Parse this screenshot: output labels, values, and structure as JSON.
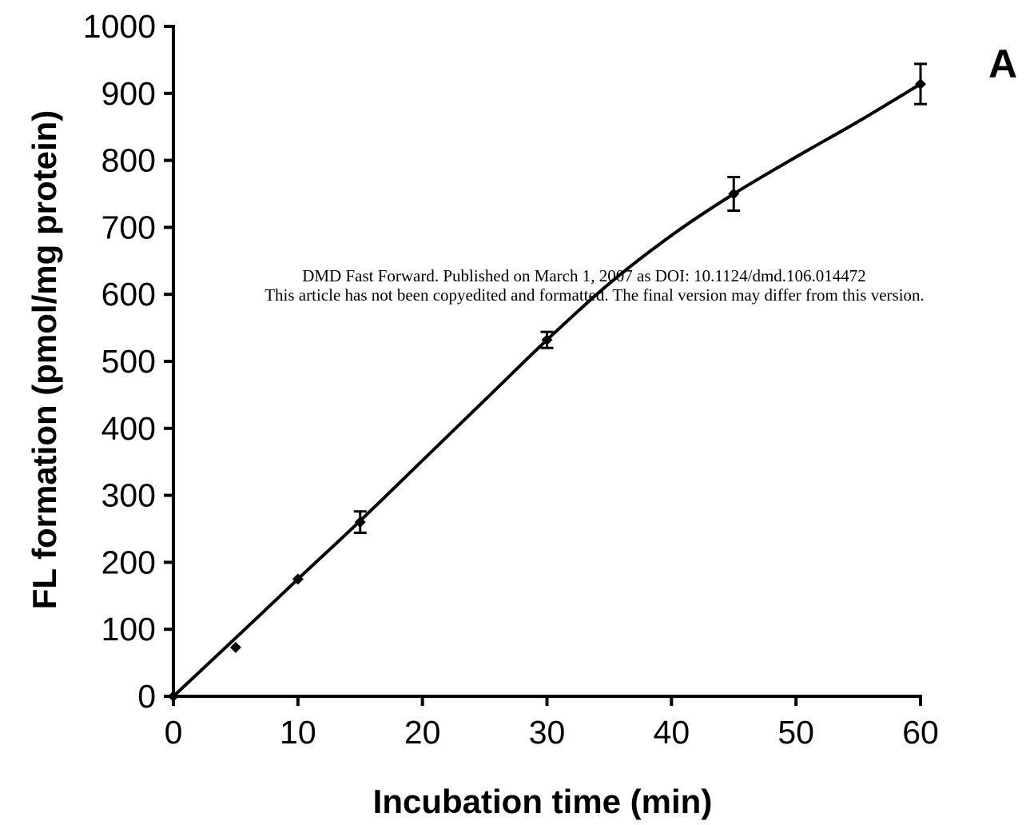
{
  "watermark": {
    "line1": "DMD Fast Forward. Published on March 1, 2007 as DOI: 10.1124/dmd.106.014472",
    "line2": "This article has not been copyedited and formatted. The final version may differ from this version."
  },
  "chart_data": {
    "type": "scatter",
    "panel_label": "A",
    "xlabel": "Incubation time (min)",
    "ylabel": "FL formation (pmol/mg protein)",
    "xlim": [
      0,
      60
    ],
    "ylim": [
      0,
      1000
    ],
    "x_ticks": [
      0,
      10,
      20,
      30,
      40,
      50,
      60
    ],
    "y_ticks": [
      0,
      100,
      200,
      300,
      400,
      500,
      600,
      700,
      800,
      900,
      1000
    ],
    "grid": false,
    "legend": "none",
    "marker": "diamond",
    "series": [
      {
        "x": [
          0,
          5,
          10,
          15,
          30,
          45,
          60
        ],
        "y": [
          0,
          73,
          175,
          260,
          532,
          750,
          914
        ],
        "error": [
          0,
          0,
          0,
          16,
          12,
          25,
          30
        ]
      }
    ],
    "fit_line": {
      "x": [
        0,
        5,
        10,
        15,
        20,
        25,
        30,
        35,
        40,
        45,
        50,
        55,
        60
      ],
      "y": [
        0,
        87,
        175,
        262,
        352,
        442,
        532,
        616,
        688,
        750,
        805,
        858,
        914
      ]
    }
  }
}
